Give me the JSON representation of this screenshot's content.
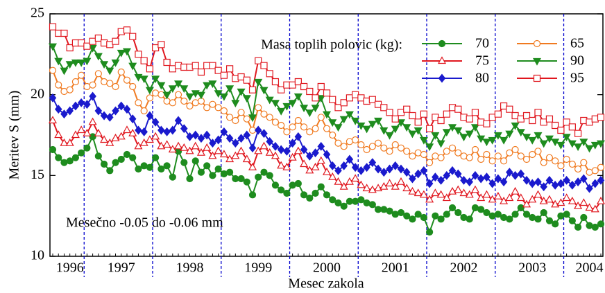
{
  "chart_data": {
    "type": "line",
    "y_label": "Meritev S (mm)",
    "x_label": "Mesec zakola",
    "legend_title": "Masa toplih polovic (kg):",
    "annotation": "Mesečno -0.05 do -0.06 mm",
    "ylim": [
      10,
      25
    ],
    "yticks": [
      10,
      15,
      20,
      25
    ],
    "categories": [
      null,
      null,
      null,
      "1996",
      null,
      null,
      null,
      null,
      null,
      null,
      null,
      null,
      "1997",
      null,
      null,
      null,
      null,
      null,
      null,
      null,
      null,
      null,
      null,
      null,
      "1998",
      null,
      null,
      null,
      null,
      null,
      null,
      null,
      null,
      null,
      null,
      null,
      "1999",
      null,
      null,
      null,
      null,
      null,
      null,
      null,
      null,
      null,
      null,
      null,
      "2000",
      null,
      null,
      null,
      null,
      null,
      null,
      null,
      null,
      null,
      null,
      null,
      "2001",
      null,
      null,
      null,
      null,
      null,
      null,
      null,
      null,
      null,
      null,
      null,
      "2002",
      null,
      null,
      null,
      null,
      null,
      null,
      null,
      null,
      null,
      null,
      null,
      "2003",
      null,
      null,
      null,
      null,
      null,
      null,
      null,
      null,
      null,
      "2004",
      null,
      null
    ],
    "series": [
      {
        "name": "70",
        "color": "#1e8c1e",
        "marker": "circle-filled",
        "values": [
          16.6,
          16.1,
          15.8,
          15.9,
          16.1,
          16.4,
          16.7,
          17.4,
          16.2,
          15.7,
          15.3,
          15.8,
          16.0,
          16.3,
          16.1,
          15.4,
          15.6,
          15.5,
          16.1,
          15.4,
          15.6,
          14.9,
          16.5,
          15.8,
          14.8,
          15.9,
          15.2,
          15.6,
          15.0,
          15.4,
          15.1,
          15.2,
          14.8,
          14.8,
          14.6,
          13.8,
          14.9,
          15.2,
          15.0,
          14.4,
          14.1,
          13.9,
          14.4,
          14.5,
          13.8,
          13.6,
          13.9,
          14.3,
          13.8,
          13.5,
          13.3,
          13.1,
          13.4,
          13.4,
          13.5,
          13.3,
          13.2,
          12.9,
          12.9,
          12.8,
          12.6,
          12.7,
          12.5,
          12.3,
          12.6,
          12.4,
          11.5,
          12.5,
          12.3,
          12.6,
          13.0,
          12.7,
          12.4,
          12.3,
          13.0,
          12.9,
          12.7,
          12.5,
          12.6,
          12.4,
          12.3,
          12.6,
          13.0,
          12.6,
          12.4,
          12.3,
          12.7,
          12.2,
          12.0,
          12.5,
          12.6,
          12.2,
          11.8,
          12.4,
          11.9,
          11.8,
          12.0
        ]
      },
      {
        "name": "65",
        "color": "#f07a20",
        "marker": "circle-open",
        "values": [
          21.5,
          20.6,
          20.2,
          20.3,
          20.8,
          21.2,
          20.5,
          20.6,
          21.3,
          20.8,
          20.7,
          20.5,
          21.4,
          20.9,
          20.5,
          19.5,
          19.0,
          19.8,
          20.1,
          20.0,
          19.6,
          19.5,
          20.0,
          19.6,
          19.3,
          19.5,
          19.6,
          19.2,
          19.4,
          19.2,
          19.0,
          18.6,
          18.4,
          18.9,
          18.5,
          17.8,
          19.2,
          18.8,
          18.6,
          18.3,
          18.1,
          17.7,
          18.0,
          18.4,
          18.0,
          17.7,
          17.9,
          18.6,
          17.9,
          17.5,
          17.0,
          16.8,
          17.1,
          17.2,
          16.9,
          16.6,
          16.8,
          17.0,
          16.7,
          16.5,
          16.9,
          16.7,
          16.5,
          16.2,
          16.4,
          16.3,
          15.8,
          16.2,
          16.1,
          16.5,
          16.7,
          16.4,
          16.2,
          16.1,
          16.6,
          16.0,
          16.3,
          15.9,
          16.2,
          15.9,
          16.4,
          16.6,
          16.2,
          16.0,
          16.3,
          16.5,
          15.8,
          16.1,
          15.9,
          15.6,
          16.0,
          15.7,
          15.4,
          15.8,
          15.2,
          15.3,
          15.5
        ]
      },
      {
        "name": "75",
        "color": "#e0161e",
        "marker": "triangle-open",
        "values": [
          18.4,
          17.5,
          17.0,
          17.0,
          17.5,
          17.8,
          17.6,
          18.3,
          17.6,
          17.2,
          17.0,
          17.3,
          17.4,
          17.8,
          17.6,
          16.8,
          17.0,
          17.2,
          17.4,
          16.8,
          16.9,
          16.6,
          16.8,
          16.7,
          16.5,
          16.8,
          16.4,
          16.7,
          16.2,
          16.5,
          16.3,
          16.0,
          16.2,
          16.5,
          16.0,
          15.5,
          16.5,
          16.8,
          16.4,
          16.2,
          15.6,
          15.5,
          16.1,
          16.5,
          15.7,
          15.3,
          15.5,
          15.9,
          15.2,
          14.9,
          14.6,
          14.3,
          14.6,
          14.8,
          14.4,
          14.2,
          14.1,
          14.2,
          14.3,
          14.5,
          14.3,
          14.6,
          14.2,
          14.0,
          13.9,
          13.8,
          13.5,
          13.9,
          13.8,
          13.6,
          14.0,
          14.1,
          13.9,
          13.8,
          14.1,
          13.6,
          13.8,
          13.5,
          13.7,
          13.4,
          13.6,
          14.0,
          13.6,
          13.2,
          13.5,
          13.8,
          13.4,
          13.5,
          13.2,
          13.3,
          13.6,
          13.4,
          13.1,
          13.3,
          13.0,
          12.9,
          13.4
        ]
      },
      {
        "name": "90",
        "color": "#1e8c1e",
        "marker": "triangle-down-filled",
        "values": [
          23.0,
          22.1,
          21.5,
          21.9,
          22.0,
          22.0,
          22.1,
          22.9,
          22.4,
          21.9,
          21.5,
          22.0,
          22.6,
          22.7,
          21.8,
          21.1,
          21.0,
          20.3,
          21.0,
          20.6,
          20.0,
          20.4,
          20.7,
          20.4,
          19.9,
          20.1,
          20.0,
          20.6,
          20.7,
          20.1,
          19.9,
          20.4,
          19.5,
          20.2,
          19.8,
          18.6,
          20.8,
          20.3,
          19.7,
          19.5,
          19.0,
          19.3,
          19.5,
          19.9,
          19.2,
          18.9,
          19.2,
          19.8,
          18.8,
          18.3,
          18.0,
          18.5,
          18.8,
          18.4,
          18.1,
          17.9,
          18.2,
          18.4,
          17.8,
          17.5,
          17.9,
          18.3,
          18.0,
          17.6,
          17.8,
          17.2,
          16.8,
          17.5,
          17.0,
          17.7,
          18.0,
          17.8,
          17.4,
          17.6,
          18.0,
          17.3,
          17.1,
          17.2,
          17.5,
          17.2,
          17.6,
          18.1,
          17.7,
          17.4,
          17.2,
          17.5,
          17.0,
          17.3,
          17.1,
          16.9,
          17.4,
          17.0,
          16.8,
          17.1,
          16.7,
          16.9,
          17.0
        ]
      },
      {
        "name": "80",
        "color": "#1a1acd",
        "marker": "diamond-filled",
        "values": [
          19.8,
          19.1,
          18.8,
          19.0,
          19.3,
          19.5,
          19.4,
          19.9,
          19.0,
          18.7,
          18.6,
          19.0,
          19.3,
          19.1,
          18.5,
          17.8,
          17.7,
          18.7,
          18.3,
          17.8,
          17.7,
          17.8,
          18.4,
          17.9,
          17.4,
          17.5,
          17.3,
          17.5,
          17.0,
          17.2,
          17.7,
          17.3,
          17.0,
          17.3,
          17.5,
          16.7,
          17.8,
          17.6,
          17.1,
          16.8,
          16.6,
          16.5,
          17.0,
          17.4,
          16.6,
          16.2,
          16.4,
          16.8,
          16.3,
          15.6,
          15.3,
          15.6,
          16.0,
          15.5,
          15.3,
          15.5,
          15.8,
          15.4,
          15.2,
          15.4,
          15.6,
          15.4,
          15.2,
          14.8,
          15.1,
          15.3,
          14.5,
          14.9,
          14.7,
          15.0,
          15.3,
          15.1,
          14.7,
          14.6,
          15.0,
          14.8,
          14.9,
          14.5,
          14.8,
          14.6,
          15.2,
          15.0,
          15.1,
          14.7,
          14.5,
          14.6,
          14.3,
          14.7,
          14.4,
          14.5,
          14.7,
          14.4,
          14.6,
          14.8,
          14.2,
          14.5,
          14.7
        ]
      },
      {
        "name": "95",
        "color": "#e0161e",
        "marker": "square-open",
        "values": [
          24.2,
          23.8,
          23.8,
          22.9,
          23.2,
          23.2,
          23.0,
          23.3,
          23.5,
          23.2,
          23.1,
          23.3,
          23.9,
          24.0,
          23.6,
          22.5,
          22.1,
          21.6,
          22.9,
          23.1,
          22.0,
          21.6,
          21.8,
          21.7,
          21.7,
          21.8,
          21.4,
          21.8,
          21.8,
          21.5,
          21.2,
          21.6,
          21.0,
          21.1,
          20.9,
          20.3,
          22.1,
          21.8,
          21.3,
          20.8,
          20.3,
          20.6,
          20.6,
          20.8,
          20.5,
          20.2,
          19.8,
          20.5,
          20.1,
          19.7,
          19.2,
          19.5,
          19.8,
          20.0,
          19.8,
          19.6,
          19.7,
          19.4,
          19.2,
          18.9,
          18.5,
          18.9,
          19.1,
          18.7,
          18.3,
          18.8,
          17.9,
          18.6,
          18.4,
          18.8,
          19.2,
          19.1,
          18.6,
          18.5,
          18.9,
          18.3,
          18.2,
          18.6,
          18.8,
          19.3,
          19.1,
          18.7,
          18.5,
          18.7,
          18.4,
          18.9,
          18.3,
          18.5,
          18.1,
          17.8,
          18.3,
          18.0,
          17.6,
          18.4,
          18.3,
          18.5,
          18.6
        ]
      }
    ]
  }
}
